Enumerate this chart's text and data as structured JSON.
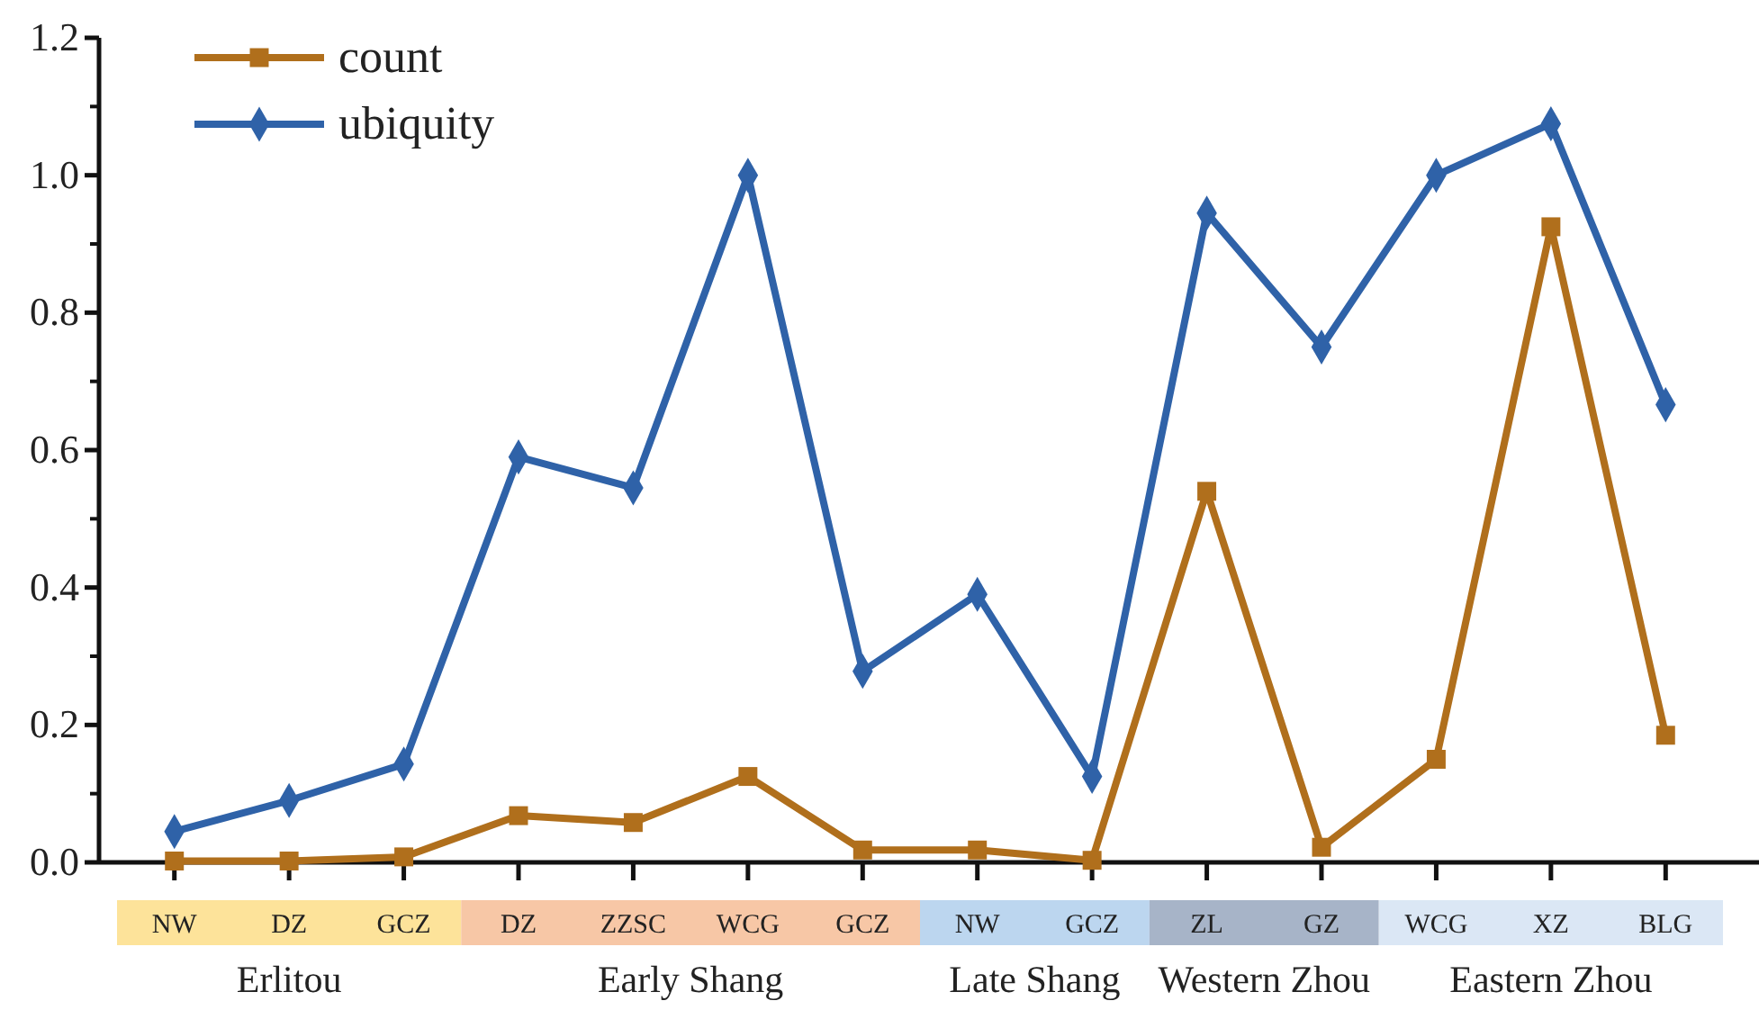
{
  "chart_data": {
    "type": "line",
    "categories": [
      "NW",
      "DZ",
      "GCZ",
      "DZ",
      "ZZSC",
      "WCG",
      "GCZ",
      "NW",
      "GCZ",
      "ZL",
      "GZ",
      "WCG",
      "XZ",
      "BLG"
    ],
    "series": [
      {
        "name": "count",
        "color": "#b06f1c",
        "marker": "square",
        "values": [
          0.002,
          0.002,
          0.008,
          0.068,
          0.058,
          0.125,
          0.018,
          0.018,
          0.003,
          0.54,
          0.022,
          0.15,
          0.925,
          0.185
        ]
      },
      {
        "name": "ubiquity",
        "color": "#2f62a8",
        "marker": "diamond",
        "values": [
          0.045,
          0.09,
          0.143,
          0.59,
          0.545,
          1.0,
          0.278,
          0.39,
          0.125,
          0.945,
          0.75,
          1.0,
          1.075,
          0.666
        ]
      }
    ],
    "ylim": [
      0,
      1.2
    ],
    "yticks": [
      {
        "value": 0,
        "label": "0.0"
      },
      0.2,
      0.4,
      0.6,
      0.8,
      {
        "value": 1,
        "label": "1.0"
      },
      1.2
    ],
    "annotations": [
      "Erlitou",
      "Early Shang",
      "Late Shang",
      "Western Zhou",
      "Eastern Zhou"
    ],
    "legend": "top left",
    "grid": false,
    "line_style": "solid"
  }
}
